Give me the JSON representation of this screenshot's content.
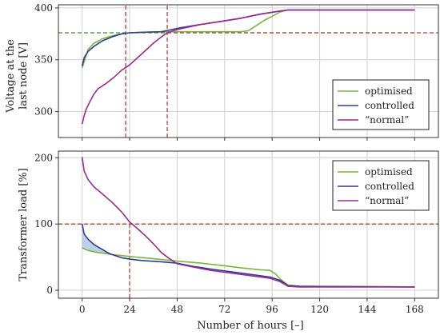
{
  "chart_data": [
    {
      "type": "line",
      "ylabel_lines": [
        "Voltage at the",
        "last node [V]"
      ],
      "xlim": [
        -12,
        180
      ],
      "ylim": [
        275,
        403
      ],
      "yticks": [
        300,
        350,
        400
      ],
      "xticks": [
        0,
        24,
        48,
        72,
        96,
        120,
        144,
        168
      ],
      "grid": true,
      "legend_position": "bottom-right",
      "reference_lines": [
        {
          "orientation": "horizontal",
          "value": 376,
          "x_to": 168,
          "color": "#3a8a2a"
        },
        {
          "orientation": "horizontal",
          "value": 376,
          "x_from": 43,
          "color": "#b0452e"
        },
        {
          "orientation": "vertical",
          "value": 22,
          "color": "#b0452e"
        },
        {
          "orientation": "vertical",
          "value": 43,
          "color": "#b0452e"
        }
      ],
      "series": [
        {
          "name": "optimised",
          "color": "#7cb342",
          "points": [
            [
              0,
              342
            ],
            [
              3,
              360
            ],
            [
              6,
              366
            ],
            [
              10,
              370
            ],
            [
              15,
              373
            ],
            [
              20,
              375
            ],
            [
              24,
              376
            ],
            [
              30,
              376.5
            ],
            [
              40,
              377
            ],
            [
              50,
              377
            ],
            [
              60,
              377
            ],
            [
              70,
              377
            ],
            [
              80,
              377
            ],
            [
              84,
              378
            ],
            [
              88,
              383
            ],
            [
              92,
              388
            ],
            [
              96,
              392
            ],
            [
              100,
              396
            ],
            [
              104,
              398
            ],
            [
              168,
              398
            ]
          ]
        },
        {
          "name": "controlled",
          "color": "#2b3f8f",
          "points": [
            [
              0,
              344
            ],
            [
              1,
              352
            ],
            [
              3,
              358
            ],
            [
              6,
              363
            ],
            [
              10,
              368
            ],
            [
              15,
              372
            ],
            [
              20,
              375
            ],
            [
              24,
              376
            ],
            [
              30,
              376.5
            ],
            [
              40,
              377
            ],
            [
              45,
              379
            ],
            [
              50,
              381
            ],
            [
              60,
              384
            ],
            [
              70,
              387
            ],
            [
              80,
              390
            ],
            [
              90,
              394
            ],
            [
              100,
              397
            ],
            [
              104,
              398
            ],
            [
              168,
              398
            ]
          ]
        },
        {
          "name": "“normal”",
          "color": "#9c2a8e",
          "points": [
            [
              0,
              288
            ],
            [
              1,
              296
            ],
            [
              2,
              302
            ],
            [
              4,
              310
            ],
            [
              6,
              317
            ],
            [
              8,
              322
            ],
            [
              12,
              327
            ],
            [
              16,
              333
            ],
            [
              20,
              340
            ],
            [
              24,
              345
            ],
            [
              28,
              352
            ],
            [
              32,
              359
            ],
            [
              36,
              366
            ],
            [
              40,
              372
            ],
            [
              43,
              376
            ],
            [
              46,
              378
            ],
            [
              50,
              380
            ],
            [
              60,
              384
            ],
            [
              70,
              387
            ],
            [
              80,
              390
            ],
            [
              90,
              394
            ],
            [
              100,
              397
            ],
            [
              104,
              398
            ],
            [
              168,
              398
            ]
          ]
        }
      ]
    },
    {
      "type": "line",
      "ylabel": "Transformer load [%]",
      "xlabel": "Number of hours [–]",
      "xlim": [
        -12,
        180
      ],
      "ylim": [
        -12,
        210
      ],
      "yticks": [
        0,
        100,
        200
      ],
      "xticks": [
        0,
        24,
        48,
        72,
        96,
        120,
        144,
        168
      ],
      "xtick_labels": [
        "0",
        "24",
        "48",
        "72",
        "96",
        "120",
        "144",
        "168"
      ],
      "grid": true,
      "legend_position": "top-right",
      "reference_lines": [
        {
          "orientation": "horizontal",
          "value": 100,
          "color": "#b0452e"
        },
        {
          "orientation": "vertical",
          "value": 24,
          "y_to": 100,
          "color": "#b0452e"
        }
      ],
      "shaded_region": {
        "between": [
          "controlled",
          "optimised"
        ],
        "x_range": [
          0,
          14
        ],
        "color": "#a9bfe0"
      },
      "series": [
        {
          "name": "optimised",
          "color": "#7cb342",
          "points": [
            [
              0,
              64
            ],
            [
              3,
              60
            ],
            [
              8,
              57
            ],
            [
              15,
              54
            ],
            [
              24,
              51
            ],
            [
              35,
              48
            ],
            [
              48,
              44
            ],
            [
              60,
              41
            ],
            [
              72,
              37
            ],
            [
              80,
              34
            ],
            [
              90,
              31
            ],
            [
              95,
              30
            ],
            [
              98,
              24
            ],
            [
              100,
              17
            ],
            [
              104,
              8
            ],
            [
              110,
              6
            ],
            [
              168,
              5
            ]
          ]
        },
        {
          "name": "controlled",
          "color": "#2b3f8f",
          "points": [
            [
              0,
              100
            ],
            [
              1,
              85
            ],
            [
              3,
              77
            ],
            [
              6,
              69
            ],
            [
              10,
              62
            ],
            [
              14,
              55
            ],
            [
              20,
              49
            ],
            [
              24,
              47
            ],
            [
              30,
              45
            ],
            [
              40,
              43
            ],
            [
              48,
              41
            ],
            [
              56,
              36
            ],
            [
              65,
              32
            ],
            [
              75,
              28
            ],
            [
              85,
              24
            ],
            [
              95,
              20
            ],
            [
              100,
              15
            ],
            [
              104,
              7
            ],
            [
              110,
              6
            ],
            [
              168,
              5
            ]
          ]
        },
        {
          "name": "“normal”",
          "color": "#9c2a8e",
          "points": [
            [
              0,
              201
            ],
            [
              1,
              180
            ],
            [
              3,
              167
            ],
            [
              6,
              156
            ],
            [
              10,
              146
            ],
            [
              15,
              133
            ],
            [
              20,
              118
            ],
            [
              24,
              103
            ],
            [
              28,
              93
            ],
            [
              32,
              82
            ],
            [
              36,
              70
            ],
            [
              40,
              57
            ],
            [
              44,
              48
            ],
            [
              48,
              40
            ],
            [
              56,
              35
            ],
            [
              65,
              30
            ],
            [
              75,
              26
            ],
            [
              85,
              22
            ],
            [
              95,
              18
            ],
            [
              100,
              13
            ],
            [
              104,
              6
            ],
            [
              110,
              5
            ],
            [
              168,
              5
            ]
          ]
        }
      ]
    }
  ]
}
